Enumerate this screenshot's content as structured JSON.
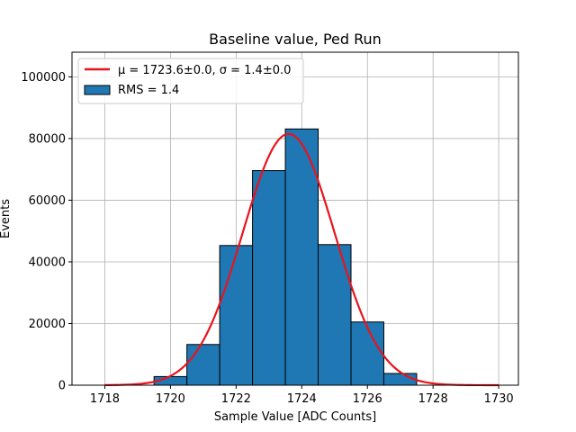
{
  "chart_data": {
    "type": "bar",
    "title": "Baseline value, Ped Run",
    "xlabel": "Sample Value [ADC Counts]",
    "ylabel": "Events",
    "xlim": [
      1717,
      1730.6
    ],
    "ylim": [
      0,
      108000
    ],
    "x_ticks": [
      1718,
      1720,
      1722,
      1724,
      1726,
      1728,
      1730
    ],
    "y_ticks": [
      0,
      20000,
      40000,
      60000,
      80000,
      100000
    ],
    "grid": true,
    "legend_position": "top-left",
    "colors": {
      "bars": "#1f77b4",
      "bar_edge": "#000000",
      "fit": "#e8141c"
    },
    "histogram": {
      "name": "RMS = 1.4",
      "bins": [
        {
          "x0": 1719.5,
          "x1": 1720.5,
          "value": 2800
        },
        {
          "x0": 1720.5,
          "x1": 1721.5,
          "value": 13200
        },
        {
          "x0": 1721.5,
          "x1": 1722.5,
          "value": 45300
        },
        {
          "x0": 1722.5,
          "x1": 1723.5,
          "value": 69600
        },
        {
          "x0": 1723.5,
          "x1": 1724.5,
          "value": 83100
        },
        {
          "x0": 1724.5,
          "x1": 1725.5,
          "value": 45600
        },
        {
          "x0": 1725.5,
          "x1": 1726.5,
          "value": 20500
        },
        {
          "x0": 1726.5,
          "x1": 1727.5,
          "value": 3800
        }
      ]
    },
    "fit": {
      "name": "μ = 1723.6±0.0, σ = 1.4±0.0",
      "mu": 1723.6,
      "sigma": 1.4,
      "amplitude": 81500,
      "x_range": [
        1718,
        1730
      ]
    }
  }
}
